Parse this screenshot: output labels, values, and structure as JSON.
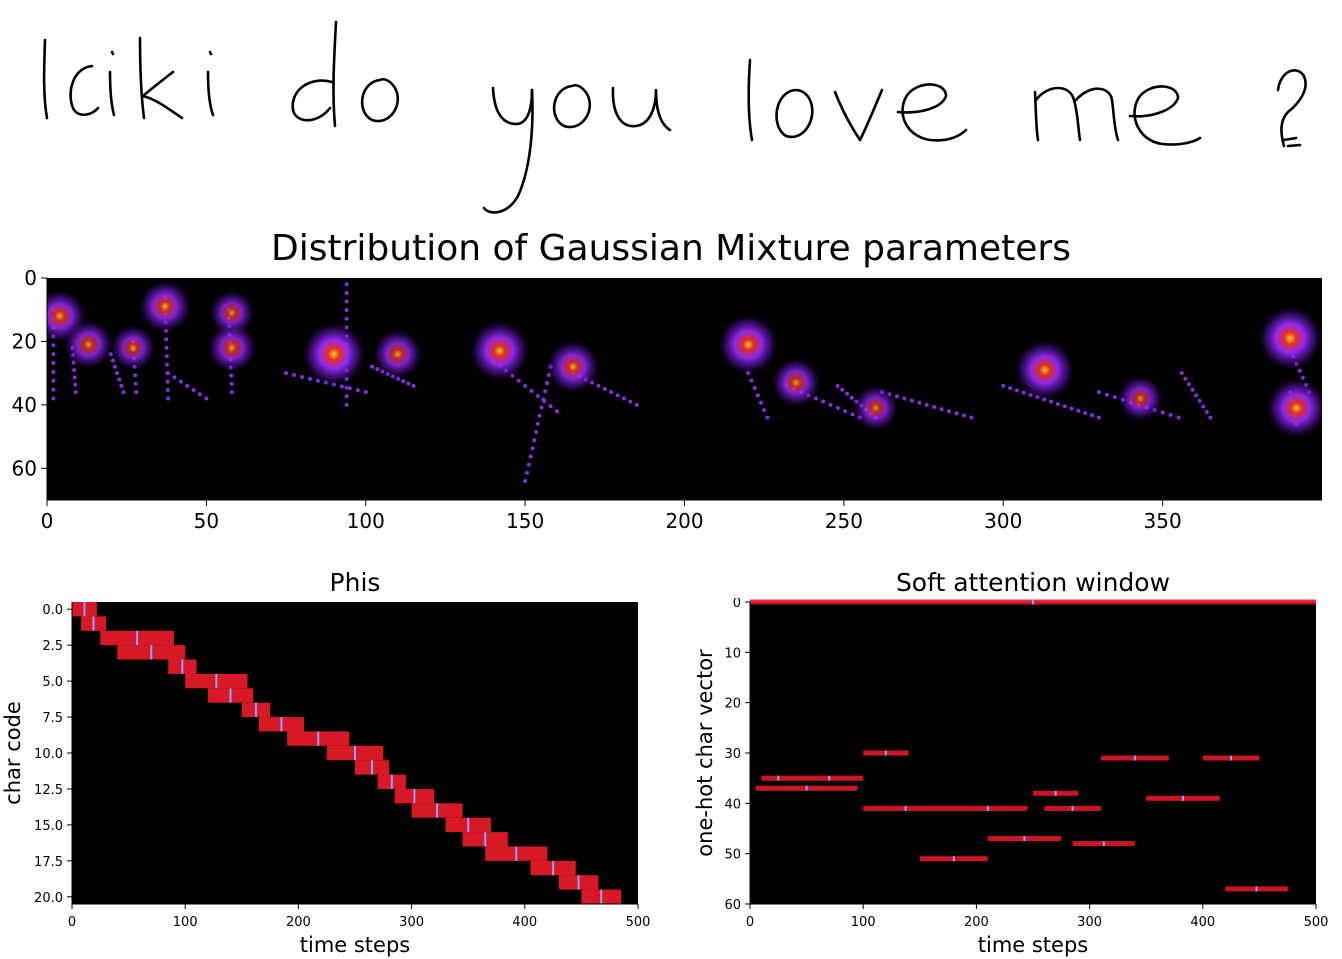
{
  "handwriting": {
    "text": "Iciki do you love me ?"
  },
  "chart_data": [
    {
      "type": "heatmap",
      "title": "Distribution of Gaussian Mixture parameters",
      "xlabel": "",
      "ylabel": "",
      "xlim": [
        0,
        400
      ],
      "ylim": [
        70,
        0
      ],
      "xticks": [
        0,
        50,
        100,
        150,
        200,
        250,
        300,
        350
      ],
      "yticks": [
        0,
        20,
        40,
        60
      ],
      "grid": false,
      "colormap": "black-purple-red-yellow",
      "mixture_centers": [
        {
          "x": 4,
          "y": 12,
          "intensity": 0.7
        },
        {
          "x": 13,
          "y": 21,
          "intensity": 0.6
        },
        {
          "x": 27,
          "y": 22,
          "intensity": 0.5
        },
        {
          "x": 37,
          "y": 9,
          "intensity": 0.7
        },
        {
          "x": 58,
          "y": 11,
          "intensity": 0.5
        },
        {
          "x": 58,
          "y": 22,
          "intensity": 0.6
        },
        {
          "x": 90,
          "y": 24,
          "intensity": 1.0
        },
        {
          "x": 110,
          "y": 24,
          "intensity": 0.6
        },
        {
          "x": 142,
          "y": 23,
          "intensity": 0.9
        },
        {
          "x": 165,
          "y": 28,
          "intensity": 0.7
        },
        {
          "x": 220,
          "y": 21,
          "intensity": 0.9
        },
        {
          "x": 235,
          "y": 33,
          "intensity": 0.6
        },
        {
          "x": 260,
          "y": 41,
          "intensity": 0.5
        },
        {
          "x": 313,
          "y": 29,
          "intensity": 0.9
        },
        {
          "x": 343,
          "y": 38,
          "intensity": 0.5
        },
        {
          "x": 390,
          "y": 19,
          "intensity": 1.0
        },
        {
          "x": 392,
          "y": 41,
          "intensity": 0.9
        }
      ]
    },
    {
      "type": "heatmap",
      "title": "Phis",
      "xlabel": "time steps",
      "ylabel": "char code",
      "xlim": [
        0,
        500
      ],
      "ylim": [
        20.5,
        -0.5
      ],
      "xticks": [
        0,
        100,
        200,
        300,
        400,
        500
      ],
      "yticks": [
        "0.0",
        "2.5",
        "5.0",
        "7.5",
        "10.0",
        "12.5",
        "15.0",
        "17.5",
        "20.0"
      ],
      "colormap": "black-red",
      "rows": [
        {
          "char": 0,
          "start": 0,
          "end": 22
        },
        {
          "char": 1,
          "start": 8,
          "end": 30
        },
        {
          "char": 2,
          "start": 25,
          "end": 90
        },
        {
          "char": 3,
          "start": 40,
          "end": 100
        },
        {
          "char": 4,
          "start": 85,
          "end": 110
        },
        {
          "char": 5,
          "start": 100,
          "end": 155
        },
        {
          "char": 6,
          "start": 120,
          "end": 160
        },
        {
          "char": 7,
          "start": 150,
          "end": 175
        },
        {
          "char": 8,
          "start": 165,
          "end": 205
        },
        {
          "char": 9,
          "start": 190,
          "end": 245
        },
        {
          "char": 10,
          "start": 225,
          "end": 275
        },
        {
          "char": 11,
          "start": 250,
          "end": 280
        },
        {
          "char": 12,
          "start": 270,
          "end": 295
        },
        {
          "char": 13,
          "start": 285,
          "end": 320
        },
        {
          "char": 14,
          "start": 300,
          "end": 345
        },
        {
          "char": 15,
          "start": 330,
          "end": 370
        },
        {
          "char": 16,
          "start": 345,
          "end": 385
        },
        {
          "char": 17,
          "start": 365,
          "end": 420
        },
        {
          "char": 18,
          "start": 405,
          "end": 445
        },
        {
          "char": 19,
          "start": 430,
          "end": 465
        },
        {
          "char": 20,
          "start": 450,
          "end": 485
        }
      ]
    },
    {
      "type": "heatmap",
      "title": "Soft attention window",
      "xlabel": "time steps",
      "ylabel": "one-hot char vector",
      "xlim": [
        0,
        500
      ],
      "ylim": [
        60,
        0
      ],
      "xticks": [
        0,
        100,
        200,
        300,
        400,
        500
      ],
      "yticks": [
        0,
        10,
        20,
        30,
        40,
        50,
        60
      ],
      "colormap": "black-red",
      "segments": [
        {
          "row": 0,
          "start": 0,
          "end": 500
        },
        {
          "row": 30,
          "start": 100,
          "end": 140
        },
        {
          "row": 31,
          "start": 310,
          "end": 370
        },
        {
          "row": 31,
          "start": 400,
          "end": 450
        },
        {
          "row": 35,
          "start": 10,
          "end": 40
        },
        {
          "row": 35,
          "start": 40,
          "end": 100
        },
        {
          "row": 37,
          "start": 5,
          "end": 95
        },
        {
          "row": 38,
          "start": 250,
          "end": 290
        },
        {
          "row": 39,
          "start": 350,
          "end": 415
        },
        {
          "row": 41,
          "start": 100,
          "end": 175
        },
        {
          "row": 41,
          "start": 175,
          "end": 245
        },
        {
          "row": 41,
          "start": 260,
          "end": 310
        },
        {
          "row": 47,
          "start": 210,
          "end": 275
        },
        {
          "row": 48,
          "start": 285,
          "end": 340
        },
        {
          "row": 51,
          "start": 150,
          "end": 210
        },
        {
          "row": 57,
          "start": 420,
          "end": 475
        }
      ]
    }
  ]
}
